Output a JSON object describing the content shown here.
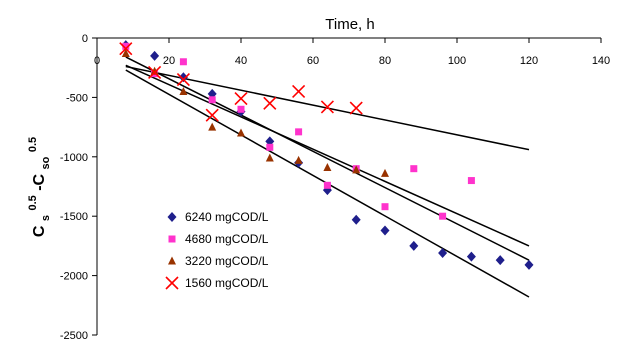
{
  "chart_data": {
    "type": "scatter",
    "title": "",
    "xlabel": "Time, h",
    "ylabel": {
      "base1": "C",
      "sub1": "s",
      "sup1": "0.5",
      "sep": "-C",
      "sub2": "so",
      "sup2": "0.5"
    },
    "xlim": [
      0,
      140
    ],
    "ylim": [
      -2500,
      0
    ],
    "x_ticks": [
      0,
      20,
      40,
      60,
      80,
      100,
      120,
      140
    ],
    "y_ticks": [
      0,
      -500,
      -1000,
      -1500,
      -2000,
      -2500
    ],
    "x_axis_position": "top",
    "grid": false,
    "legend_position": "bottom-left",
    "series": [
      {
        "name": "6240 mgCOD/L",
        "marker": "diamond",
        "color": "#1f1f8c",
        "points": [
          [
            8,
            -60
          ],
          [
            16,
            -150
          ],
          [
            24,
            -330
          ],
          [
            32,
            -470
          ],
          [
            40,
            -620
          ],
          [
            48,
            -870
          ],
          [
            56,
            -1050
          ],
          [
            64,
            -1280
          ],
          [
            72,
            -1530
          ],
          [
            80,
            -1620
          ],
          [
            88,
            -1750
          ],
          [
            96,
            -1810
          ],
          [
            104,
            -1840
          ],
          [
            112,
            -1870
          ],
          [
            120,
            -1910
          ]
        ],
        "trend": [
          [
            8,
            -270
          ],
          [
            120,
            -2180
          ]
        ]
      },
      {
        "name": "4680 mgCOD/L",
        "marker": "square",
        "color": "#ff33cc",
        "points": [
          [
            8,
            -70
          ],
          [
            16,
            -300
          ],
          [
            24,
            -200
          ],
          [
            32,
            -520
          ],
          [
            40,
            -600
          ],
          [
            48,
            -920
          ],
          [
            56,
            -790
          ],
          [
            64,
            -1240
          ],
          [
            72,
            -1100
          ],
          [
            80,
            -1420
          ],
          [
            88,
            -1100
          ],
          [
            96,
            -1500
          ],
          [
            104,
            -1200
          ]
        ],
        "trend": [
          [
            8,
            -230
          ],
          [
            120,
            -1750
          ]
        ]
      },
      {
        "name": "3220 mgCOD/L",
        "marker": "triangle",
        "color": "#993300",
        "points": [
          [
            8,
            -130
          ],
          [
            16,
            -280
          ],
          [
            24,
            -450
          ],
          [
            32,
            -750
          ],
          [
            40,
            -800
          ],
          [
            48,
            -1010
          ],
          [
            56,
            -1030
          ],
          [
            64,
            -1090
          ],
          [
            72,
            -1110
          ],
          [
            80,
            -1140
          ]
        ],
        "trend": [
          [
            8,
            -160
          ],
          [
            120,
            -1870
          ]
        ]
      },
      {
        "name": "1560 mgCOD/L",
        "marker": "x",
        "color": "#ff0000",
        "points": [
          [
            8,
            -90
          ],
          [
            16,
            -290
          ],
          [
            24,
            -350
          ],
          [
            32,
            -650
          ],
          [
            40,
            -510
          ],
          [
            48,
            -550
          ],
          [
            56,
            -450
          ],
          [
            64,
            -580
          ],
          [
            72,
            -590
          ]
        ],
        "trend": [
          [
            8,
            -240
          ],
          [
            120,
            -940
          ]
        ]
      }
    ]
  }
}
